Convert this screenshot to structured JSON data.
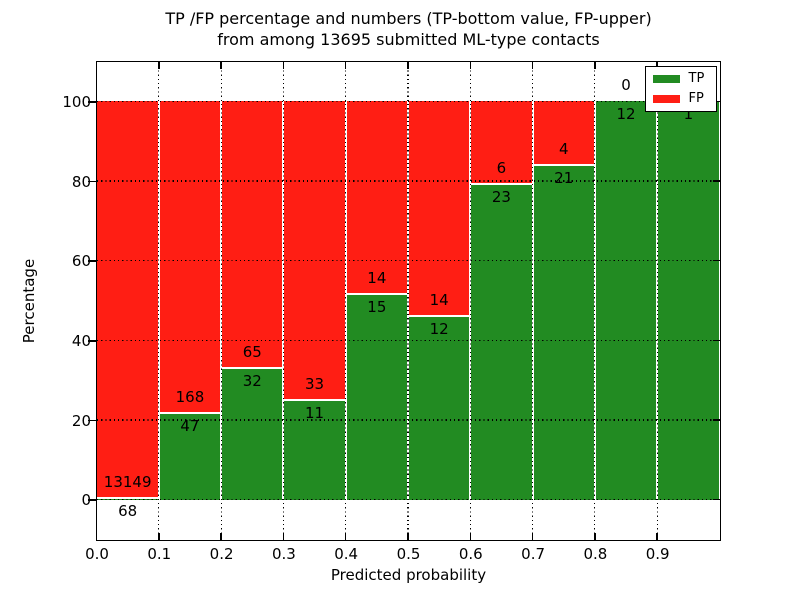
{
  "figure": {
    "title_line1": "TP /FP percentage and numbers (TP-bottom value, FP-upper)",
    "title_line2": "from among 13695 submitted ML-type contacts",
    "xlabel": "Predicted probability",
    "ylabel": "Percentage"
  },
  "chart_data": {
    "type": "bar",
    "subtype": "stacked-percentage-histogram",
    "title": "TP /FP percentage and numbers (TP-bottom value, FP-upper)\nfrom among 13695 submitted ML-type contacts",
    "xlabel": "Predicted probability",
    "ylabel": "Percentage",
    "total_contacts": 13695,
    "bin_width": 0.1,
    "categories": [
      "0.0-0.1",
      "0.1-0.2",
      "0.2-0.3",
      "0.3-0.4",
      "0.4-0.5",
      "0.5-0.6",
      "0.6-0.7",
      "0.7-0.8",
      "0.8-0.9",
      "0.9-1.0"
    ],
    "series": [
      {
        "name": "TP",
        "color": "#228b22",
        "values": [
          68,
          47,
          32,
          11,
          15,
          12,
          23,
          21,
          12,
          1
        ]
      },
      {
        "name": "FP",
        "color": "#ff1e14",
        "values": [
          13149,
          168,
          65,
          33,
          14,
          14,
          6,
          4,
          0,
          0
        ]
      }
    ],
    "tp_percent": [
      0.51,
      21.86,
      32.99,
      25.0,
      51.72,
      46.15,
      79.31,
      84.0,
      100.0,
      100.0
    ],
    "xlim": [
      0.0,
      1.0
    ],
    "ylim": [
      -10,
      110
    ],
    "x_tick_labels": [
      "0.0",
      "0.1",
      "0.2",
      "0.3",
      "0.4",
      "0.5",
      "0.6",
      "0.7",
      "0.8",
      "0.9"
    ],
    "y_tick_labels": [
      "0",
      "20",
      "40",
      "60",
      "80",
      "100"
    ],
    "y_tick_values": [
      0,
      20,
      40,
      60,
      80,
      100
    ],
    "grid": "dotted",
    "legend": {
      "position": "upper right",
      "entries": [
        {
          "label": "TP",
          "color": "#228b22"
        },
        {
          "label": "FP",
          "color": "#ff1e14"
        }
      ]
    },
    "axes_facecolor": "#ffffff",
    "text_color": "#000000"
  }
}
